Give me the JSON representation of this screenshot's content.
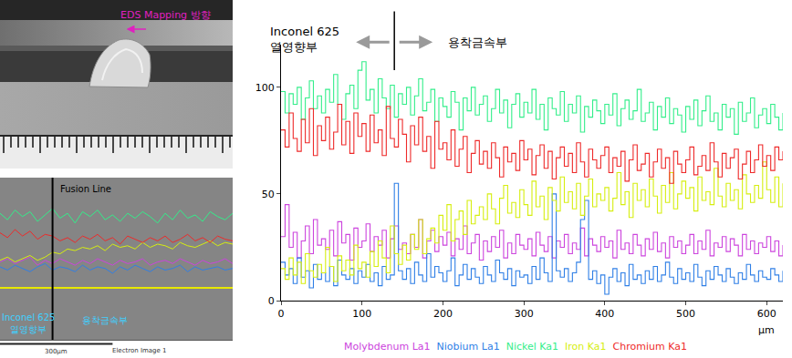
{
  "photo": {
    "label": "EDS Mapping 방향"
  },
  "chart_data": [
    {
      "type": "line",
      "line_style": "step",
      "legend": "bottom",
      "grid": false,
      "x_label": "µm",
      "annotations": [
        "Inconel 625\n열영향부",
        "용착금속부"
      ],
      "fusion_line": 140,
      "xlim": [
        0,
        620
      ],
      "xticks": [
        0,
        100,
        200,
        300,
        400,
        500,
        600
      ],
      "ylim": [
        0,
        120
      ],
      "yticks": [
        0,
        50,
        100
      ],
      "x": [
        0,
        5,
        10,
        15,
        20,
        25,
        30,
        35,
        40,
        45,
        50,
        55,
        60,
        65,
        70,
        75,
        80,
        85,
        90,
        95,
        100,
        105,
        110,
        115,
        120,
        125,
        130,
        135,
        140,
        145,
        150,
        155,
        160,
        165,
        170,
        175,
        180,
        185,
        190,
        195,
        200,
        205,
        210,
        215,
        220,
        225,
        230,
        235,
        240,
        245,
        250,
        255,
        260,
        265,
        270,
        275,
        280,
        285,
        290,
        295,
        300,
        305,
        310,
        315,
        320,
        325,
        330,
        335,
        340,
        345,
        350,
        355,
        360,
        365,
        370,
        375,
        380,
        385,
        390,
        395,
        400,
        405,
        410,
        415,
        420,
        425,
        430,
        435,
        440,
        445,
        450,
        455,
        460,
        465,
        470,
        475,
        480,
        485,
        490,
        495,
        500,
        505,
        510,
        515,
        520,
        525,
        530,
        535,
        540,
        545,
        550,
        555,
        560,
        565,
        570,
        575,
        580,
        585,
        590,
        595,
        600,
        605,
        610,
        615,
        620
      ],
      "series": [
        {
          "name": "Molybdenum La1",
          "color": "#cc44dd",
          "values": [
            30,
            45,
            25,
            32,
            20,
            28,
            35,
            22,
            38,
            26,
            29,
            24,
            33,
            21,
            37,
            27,
            31,
            19,
            34,
            25,
            28,
            36,
            23,
            30,
            26,
            33,
            20,
            29,
            35,
            24,
            27,
            22,
            31,
            25,
            38,
            20,
            28,
            33,
            23,
            30,
            26,
            32,
            21,
            29,
            24,
            35,
            22,
            27,
            31,
            19,
            28,
            23,
            30,
            25,
            33,
            20,
            27,
            22,
            31,
            26,
            24,
            29,
            21,
            32,
            26,
            23,
            30,
            20,
            28,
            25,
            31,
            22,
            27,
            24,
            34,
            21,
            29,
            26,
            23,
            30,
            25,
            28,
            20,
            33,
            24,
            27,
            22,
            31,
            26,
            21,
            29,
            24,
            32,
            23,
            27,
            20,
            30,
            25,
            28,
            22,
            26,
            31,
            22,
            28,
            24,
            33,
            21,
            27,
            25,
            30,
            23,
            29,
            26,
            21,
            31,
            24,
            28,
            22,
            27,
            25,
            30,
            23,
            28,
            21,
            26
          ]
        },
        {
          "name": "Niobium La1",
          "color": "#2f7fe6",
          "values": [
            18,
            12,
            15,
            8,
            20,
            11,
            14,
            6,
            17,
            10,
            13,
            9,
            16,
            7,
            19,
            12,
            10,
            15,
            8,
            14,
            11,
            17,
            9,
            13,
            7,
            16,
            10,
            12,
            55,
            14,
            10,
            15,
            8,
            18,
            12,
            9,
            22,
            11,
            16,
            13,
            9,
            14,
            20,
            7,
            12,
            17,
            10,
            15,
            11,
            8,
            16,
            12,
            9,
            19,
            13,
            10,
            15,
            7,
            14,
            11,
            12,
            8,
            16,
            10,
            20,
            13,
            9,
            50,
            14,
            11,
            15,
            9,
            13,
            18,
            38,
            47,
            10,
            14,
            8,
            12,
            3,
            11,
            15,
            9,
            13,
            7,
            17,
            10,
            12,
            8,
            14,
            10,
            16,
            9,
            12,
            18,
            11,
            8,
            15,
            10,
            13,
            9,
            17,
            11,
            7,
            14,
            10,
            16,
            12,
            9,
            15,
            11,
            8,
            13,
            10,
            17,
            12,
            9,
            14,
            11,
            10,
            15,
            12,
            9,
            14
          ]
        },
        {
          "name": "Nickel Ka1",
          "color": "#33ee8a",
          "values": [
            98,
            88,
            97,
            92,
            100,
            85,
            95,
            103,
            90,
            96,
            88,
            99,
            93,
            106,
            92,
            85,
            97,
            101,
            90,
            108,
            112,
            94,
            99,
            88,
            104,
            95,
            90,
            101,
            86,
            97,
            92,
            100,
            87,
            96,
            104,
            89,
            93,
            99,
            84,
            95,
            91,
            86,
            98,
            93,
            80,
            95,
            89,
            100,
            87,
            92,
            96,
            84,
            90,
            99,
            88,
            94,
            81,
            92,
            97,
            86,
            93,
            88,
            99,
            85,
            92,
            80,
            95,
            90,
            87,
            98,
            84,
            92,
            88,
            96,
            79,
            91,
            86,
            94,
            89,
            83,
            92,
            87,
            97,
            82,
            90,
            94,
            85,
            89,
            99,
            84,
            88,
            93,
            80,
            91,
            86,
            95,
            83,
            90,
            87,
            79,
            91,
            85,
            94,
            82,
            89,
            96,
            84,
            88,
            80,
            92,
            86,
            90,
            78,
            93,
            84,
            88,
            95,
            81,
            87,
            90,
            83,
            92,
            86,
            80,
            88
          ]
        },
        {
          "name": "Iron Ka1",
          "color": "#d6ee10",
          "values": [
            15,
            10,
            20,
            12,
            18,
            8,
            22,
            14,
            11,
            17,
            13,
            25,
            16,
            9,
            21,
            14,
            19,
            12,
            26,
            15,
            18,
            11,
            23,
            16,
            28,
            20,
            13,
            35,
            22,
            17,
            26,
            19,
            31,
            24,
            38,
            22,
            29,
            34,
            27,
            40,
            33,
            45,
            28,
            38,
            42,
            31,
            47,
            36,
            40,
            44,
            38,
            50,
            43,
            36,
            48,
            54,
            41,
            46,
            39,
            52,
            45,
            40,
            56,
            44,
            49,
            38,
            53,
            47,
            42,
            58,
            46,
            51,
            43,
            55,
            40,
            49,
            57,
            44,
            50,
            47,
            53,
            42,
            48,
            60,
            45,
            51,
            39,
            55,
            47,
            52,
            44,
            57,
            49,
            41,
            54,
            46,
            60,
            43,
            50,
            56,
            48,
            53,
            42,
            58,
            47,
            51,
            45,
            62,
            49,
            44,
            55,
            47,
            52,
            43,
            59,
            50,
            46,
            54,
            48,
            65,
            52,
            46,
            58,
            44,
            55
          ]
        },
        {
          "name": "Chromium Ka1",
          "color": "#ee2a2a",
          "values": [
            80,
            72,
            88,
            76,
            70,
            85,
            74,
            90,
            68,
            82,
            75,
            86,
            71,
            79,
            92,
            73,
            84,
            69,
            88,
            77,
            83,
            70,
            87,
            74,
            80,
            68,
            91,
            76,
            72,
            85,
            78,
            65,
            82,
            73,
            86,
            70,
            77,
            62,
            84,
            71,
            74,
            66,
            80,
            63,
            71,
            77,
            60,
            69,
            75,
            64,
            70,
            62,
            74,
            67,
            58,
            72,
            65,
            69,
            61,
            75,
            66,
            71,
            59,
            68,
            73,
            62,
            70,
            57,
            67,
            72,
            63,
            69,
            60,
            74,
            65,
            58,
            71,
            66,
            62,
            68,
            72,
            60,
            67,
            63,
            70,
            56,
            66,
            73,
            61,
            64,
            69,
            58,
            65,
            71,
            62,
            67,
            55,
            70,
            64,
            60,
            66,
            72,
            59,
            63,
            68,
            61,
            74,
            65,
            58,
            69,
            62,
            67,
            71,
            57,
            64,
            70,
            60,
            66,
            73,
            63,
            68,
            61,
            72,
            66,
            70
          ]
        }
      ]
    },
    {
      "type": "line",
      "line_style": "solid",
      "grid": false,
      "tick_labels": false,
      "annotations": [
        "Fusion Line",
        "Inconel 625\n열영향부",
        "용착금속부",
        "Electron Image 1"
      ],
      "fusion_line": 140,
      "scan_line": 32,
      "scale_bar": {
        "value": 300,
        "label": "300µm"
      },
      "xlim": [
        0,
        620
      ],
      "ylim": [
        0,
        100
      ],
      "x": [
        0,
        20,
        40,
        60,
        80,
        100,
        120,
        140,
        160,
        180,
        200,
        220,
        240,
        260,
        280,
        300,
        320,
        340,
        360,
        380,
        400,
        420,
        440,
        460,
        480,
        500,
        520,
        540,
        560,
        580,
        600,
        620
      ],
      "series": [
        {
          "name": "Molybdenum La1",
          "color": "#cc44dd",
          "values": [
            48,
            50,
            47,
            49,
            51,
            46,
            49,
            47,
            50,
            48,
            46,
            49,
            47,
            50,
            48,
            46,
            49,
            47,
            48,
            50,
            46,
            48,
            49,
            47,
            50,
            48,
            46,
            49,
            47,
            48,
            50,
            47
          ]
        },
        {
          "name": "Niobium La1",
          "color": "#2f7fe6",
          "values": [
            45,
            43,
            46,
            44,
            42,
            45,
            47,
            43,
            45,
            44,
            42,
            46,
            43,
            45,
            44,
            41,
            45,
            43,
            46,
            44,
            42,
            45,
            43,
            44,
            46,
            42,
            45,
            43,
            44,
            45,
            43,
            44
          ]
        },
        {
          "name": "Nickel Ka1",
          "color": "#33ee8a",
          "values": [
            78,
            74,
            80,
            76,
            79,
            73,
            77,
            81,
            75,
            78,
            72,
            79,
            76,
            80,
            74,
            77,
            73,
            78,
            75,
            79,
            76,
            72,
            78,
            74,
            80,
            75,
            77,
            73,
            79,
            76,
            74,
            78
          ]
        },
        {
          "name": "Iron Ka1",
          "color": "#d6ee10",
          "values": [
            49,
            51,
            48,
            50,
            52,
            49,
            51,
            54,
            53,
            56,
            55,
            57,
            56,
            58,
            55,
            59,
            57,
            58,
            56,
            60,
            57,
            59,
            58,
            56,
            60,
            58,
            57,
            59,
            61,
            58,
            60,
            59
          ]
        },
        {
          "name": "Chromium Ka1",
          "color": "#ee2a2a",
          "values": [
            66,
            63,
            68,
            64,
            67,
            62,
            65,
            64,
            61,
            63,
            60,
            64,
            62,
            65,
            61,
            63,
            59,
            64,
            62,
            60,
            63,
            61,
            64,
            60,
            62,
            65,
            61,
            63,
            60,
            64,
            62,
            61
          ]
        }
      ]
    }
  ]
}
